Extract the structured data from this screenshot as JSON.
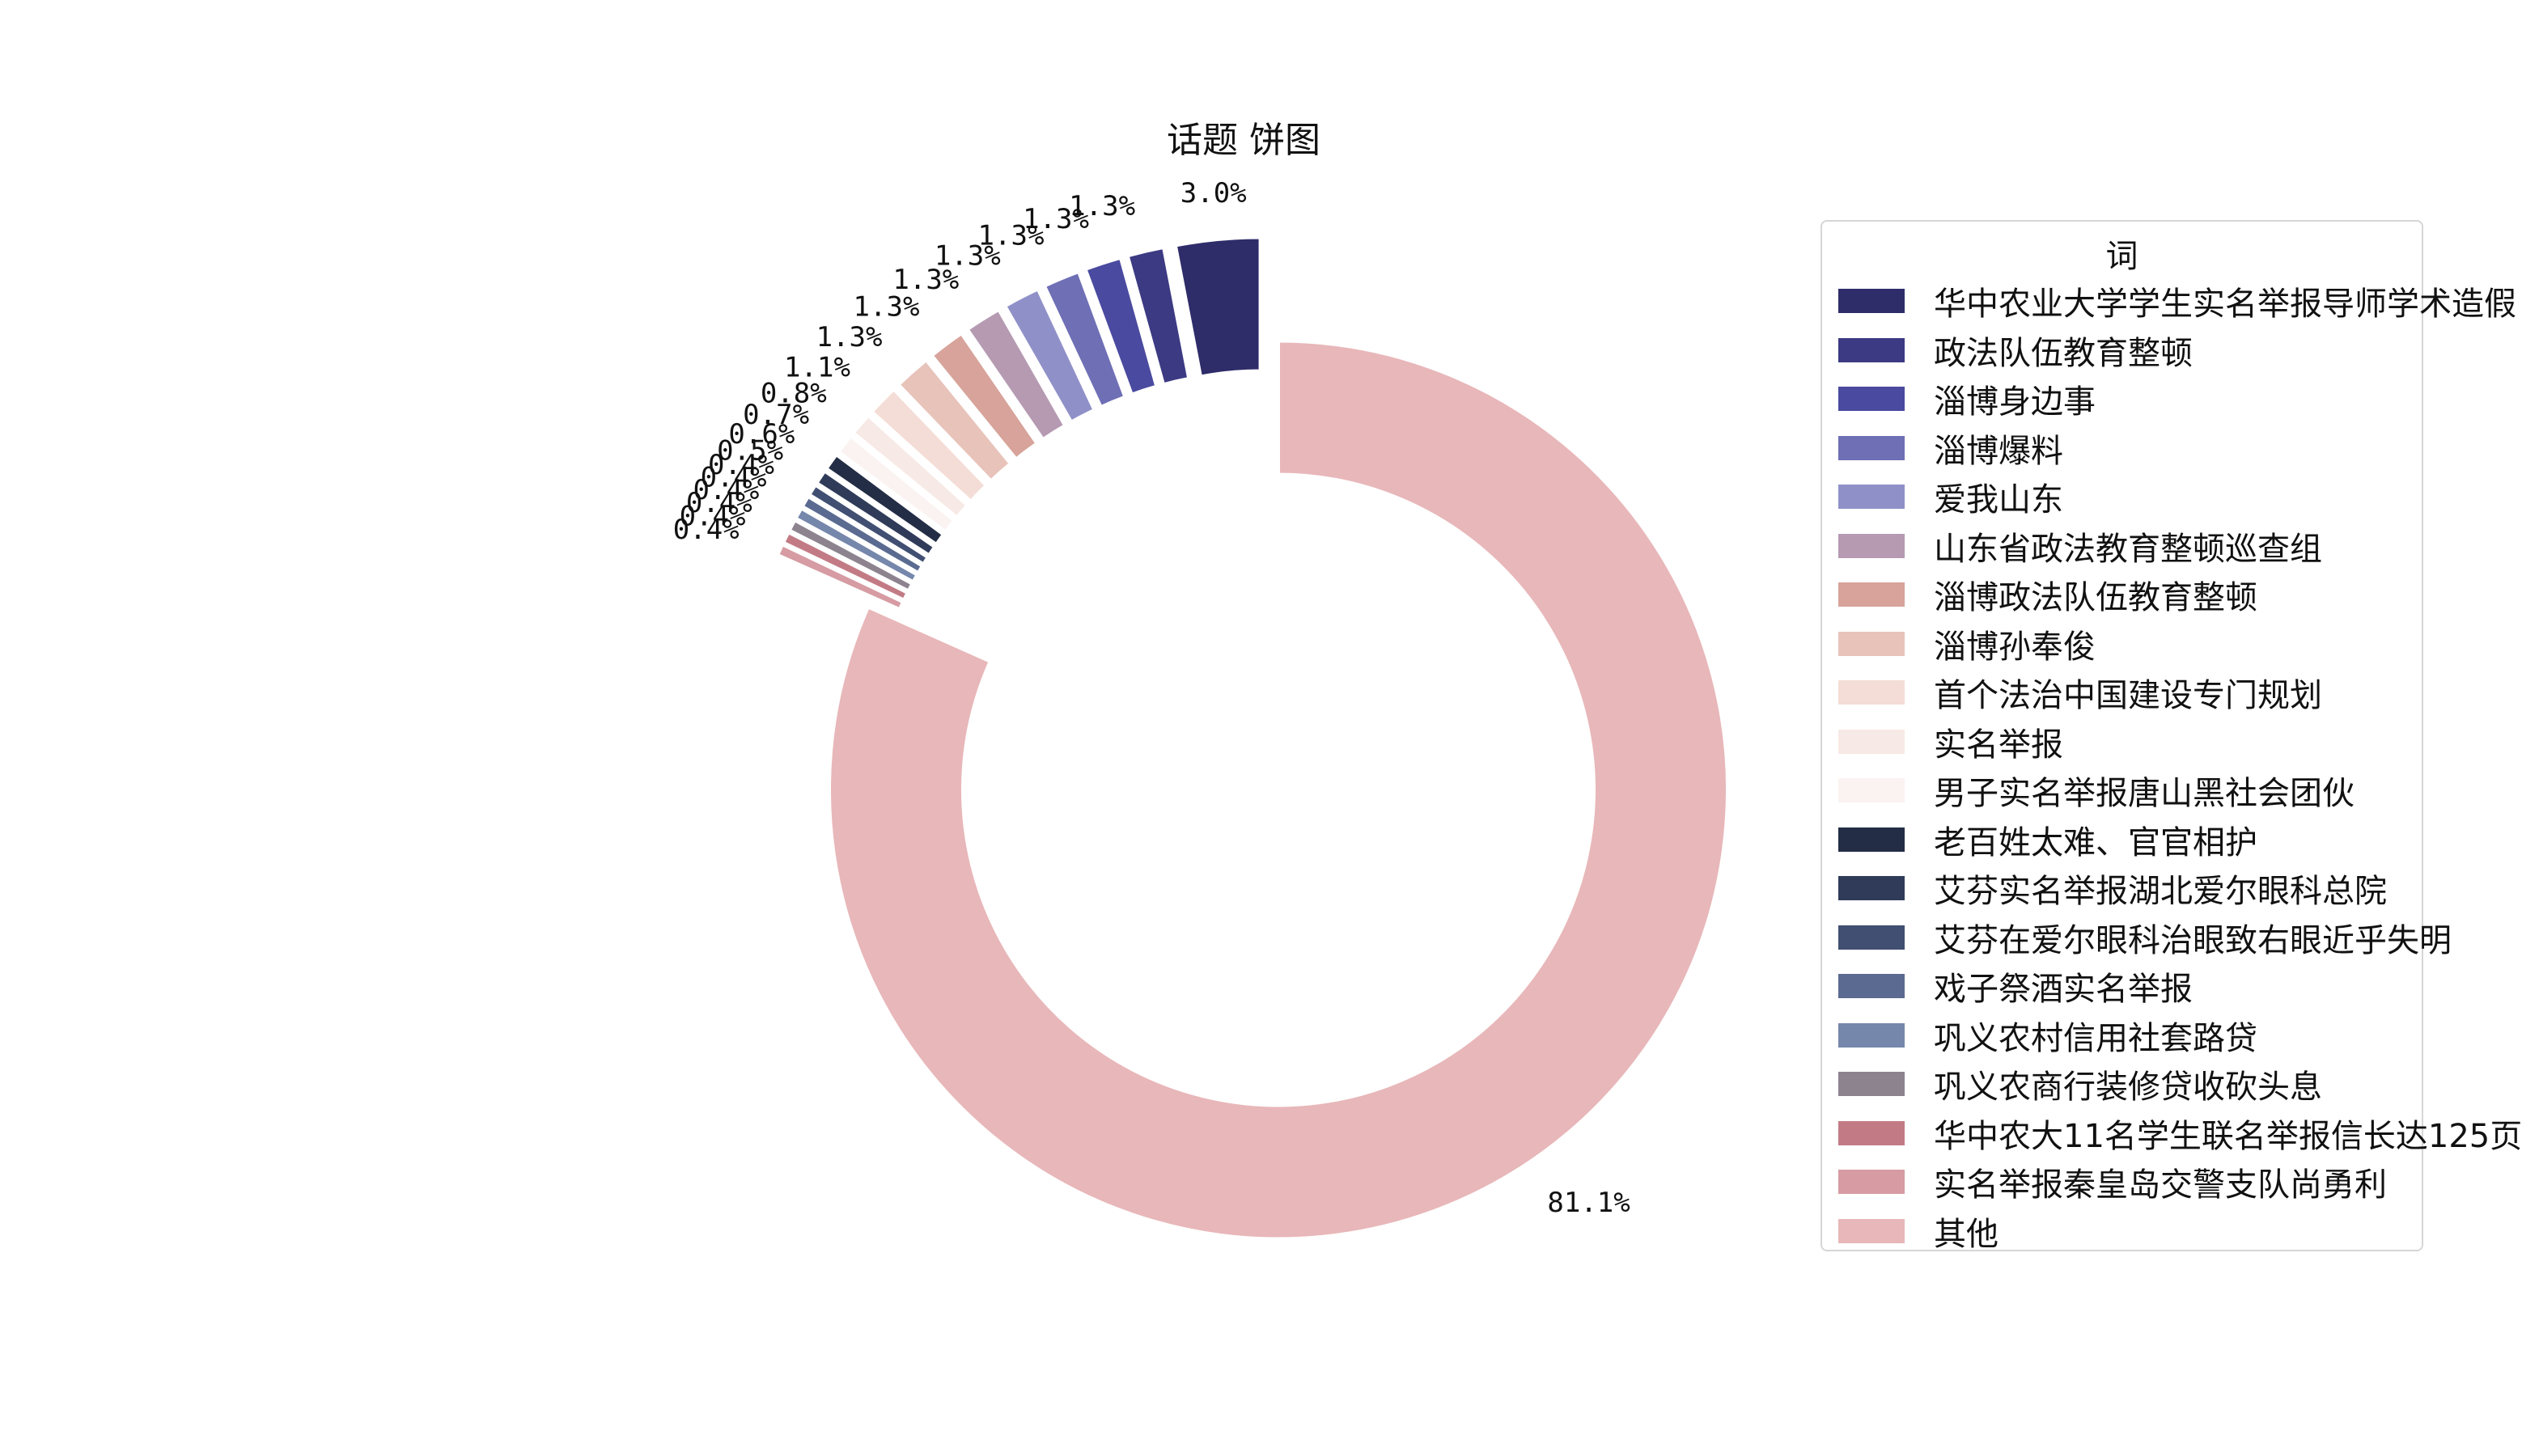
{
  "chart_data": {
    "type": "pie",
    "style": "donut-exploded",
    "title": "话题 饼图",
    "legend": {
      "title": "词",
      "placement": "right"
    },
    "slices": [
      {
        "label": "华中农业大学学生实名举报导师学术造假",
        "value": 3.0,
        "display": "3.0%",
        "color": "#2e2c69"
      },
      {
        "label": "政法队伍教育整顿",
        "value": 1.3,
        "display": "1.3%",
        "color": "#3c3a83"
      },
      {
        "label": "淄博身边事",
        "value": 1.3,
        "display": "1.3%",
        "color": "#4a4aa0"
      },
      {
        "label": "淄博爆料",
        "value": 1.3,
        "display": "1.3%",
        "color": "#6e6fb5"
      },
      {
        "label": "爱我山东",
        "value": 1.3,
        "display": "1.3%",
        "color": "#9090c9"
      },
      {
        "label": "山东省政法教育整顿巡查组",
        "value": 1.3,
        "display": "1.3%",
        "color": "#b59ab2"
      },
      {
        "label": "淄博政法队伍教育整顿",
        "value": 1.3,
        "display": "1.3%",
        "color": "#d7a39a"
      },
      {
        "label": "淄博孙奉俊",
        "value": 1.3,
        "display": "1.3%",
        "color": "#e8c3ba"
      },
      {
        "label": "首个法治中国建设专门规划",
        "value": 1.1,
        "display": "1.1%",
        "color": "#f4ddd6"
      },
      {
        "label": "实名举报",
        "value": 0.8,
        "display": "0.8%",
        "color": "#f7e9e5"
      },
      {
        "label": "男子实名举报唐山黑社会团伙",
        "value": 0.7,
        "display": "0.7%",
        "color": "#faf3f1"
      },
      {
        "label": "老百姓太难、官官相护",
        "value": 0.6,
        "display": "0.6%",
        "color": "#232d45"
      },
      {
        "label": "艾芬实名举报湖北爱尔眼科总院",
        "value": 0.5,
        "display": "0.5%",
        "color": "#2f3b59"
      },
      {
        "label": "艾芬在爱尔眼科治眼致右眼近乎失明",
        "value": 0.4,
        "display": "0.4%",
        "color": "#404f72"
      },
      {
        "label": "戏子祭酒实名举报",
        "value": 0.4,
        "display": "0.4%",
        "color": "#5a6a90"
      },
      {
        "label": "巩义农村信用社套路贷",
        "value": 0.4,
        "display": "0.4%",
        "color": "#7687ac"
      },
      {
        "label": "巩义农商行装修贷收砍头息",
        "value": 0.4,
        "display": "0.4%",
        "color": "#8d838f"
      },
      {
        "label": "华中农大11名学生联名举报信长达125页",
        "value": 0.4,
        "display": "0.4%",
        "color": "#c27b85"
      },
      {
        "label": "实名举报秦皇岛交警支队尚勇利",
        "value": 0.4,
        "display": "0.4%",
        "color": "#d69ba3"
      },
      {
        "label": "其他",
        "value": 81.1,
        "display": "81.1%",
        "color": "#e8b7b9"
      }
    ]
  }
}
